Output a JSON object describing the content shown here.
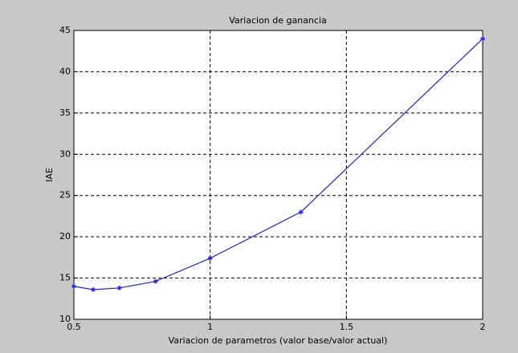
{
  "chart_data": {
    "type": "line",
    "title": "Variacion de ganancia",
    "xlabel": "Variacion de parametros (valor base/valor actual)",
    "ylabel": "IAE",
    "series": [
      {
        "color": "#2020d0",
        "marker": "*",
        "x": [
          0.5,
          0.571,
          0.667,
          0.8,
          1,
          1.333,
          2
        ],
        "values": [
          14,
          13.6,
          13.8,
          14.6,
          17.4,
          23,
          44
        ]
      }
    ],
    "xlim": [
      0.5,
      2
    ],
    "xticks": [
      0.5,
      1,
      1.5,
      2
    ],
    "ylim": [
      10,
      45
    ],
    "yticks": [
      10,
      15,
      20,
      25,
      30,
      35,
      40,
      45
    ],
    "grid": true
  }
}
